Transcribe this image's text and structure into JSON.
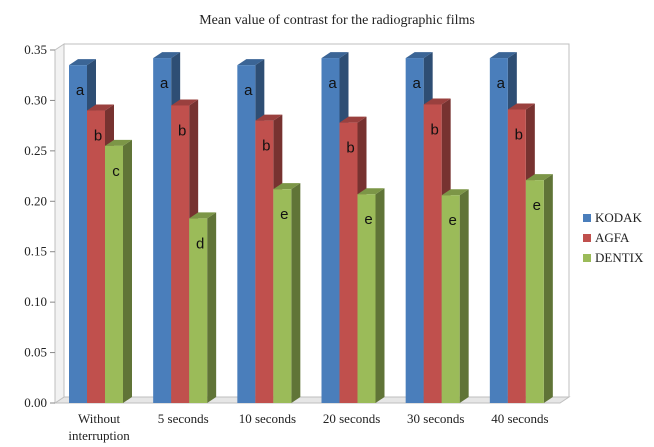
{
  "chart_data": {
    "type": "bar",
    "title": "Mean value of contrast for the radiographic films",
    "categories": [
      [
        "Without",
        "interruption"
      ],
      [
        "5 seconds"
      ],
      [
        "10 seconds"
      ],
      [
        "20 seconds"
      ],
      [
        "30 seconds"
      ],
      [
        "40 seconds"
      ]
    ],
    "series": [
      {
        "name": "KODAK",
        "color": "#4a7ebb",
        "values": [
          0.335,
          0.342,
          0.335,
          0.342,
          0.342,
          0.342
        ],
        "labels": [
          "a",
          "a",
          "a",
          "a",
          "a",
          "a"
        ]
      },
      {
        "name": "AGFA",
        "color": "#c0504d",
        "values": [
          0.29,
          0.295,
          0.28,
          0.278,
          0.296,
          0.291
        ],
        "labels": [
          "b",
          "b",
          "b",
          "b",
          "b",
          "b"
        ]
      },
      {
        "name": "DENTIX",
        "color": "#9bbb59",
        "values": [
          0.255,
          0.183,
          0.212,
          0.207,
          0.206,
          0.221
        ],
        "labels": [
          "c",
          "d",
          "e",
          "e",
          "e",
          "e"
        ]
      }
    ],
    "yticks": [
      "0.00",
      "0.05",
      "0.10",
      "0.15",
      "0.20",
      "0.25",
      "0.30",
      "0.35"
    ],
    "ylim": [
      0,
      0.35
    ],
    "grid": false,
    "legend_position": "right"
  }
}
